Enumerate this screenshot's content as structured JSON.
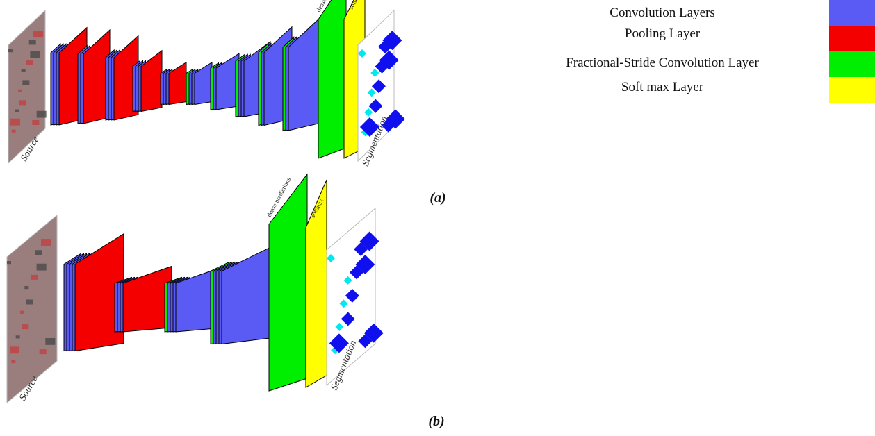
{
  "legend": [
    {
      "label": "Convolution Layers",
      "color": "#5a5af5"
    },
    {
      "label": "Pooling Layer",
      "color": "#f50000"
    },
    {
      "label": "Fractional-Stride Convolution Layer",
      "color": "#00ee00"
    },
    {
      "label": "Soft max Layer",
      "color": "#ffff00"
    }
  ],
  "diagrams": [
    {
      "caption": "(a)",
      "source_label": "Source",
      "dense_label": "dense predictions",
      "softmax_label": "softmax",
      "segmentation_label": "Segmentation"
    },
    {
      "caption": "(b)",
      "source_label": "Source",
      "dense_label": "dense predictions",
      "softmax_label": "softmax",
      "segmentation_label": "Segmentation"
    }
  ]
}
